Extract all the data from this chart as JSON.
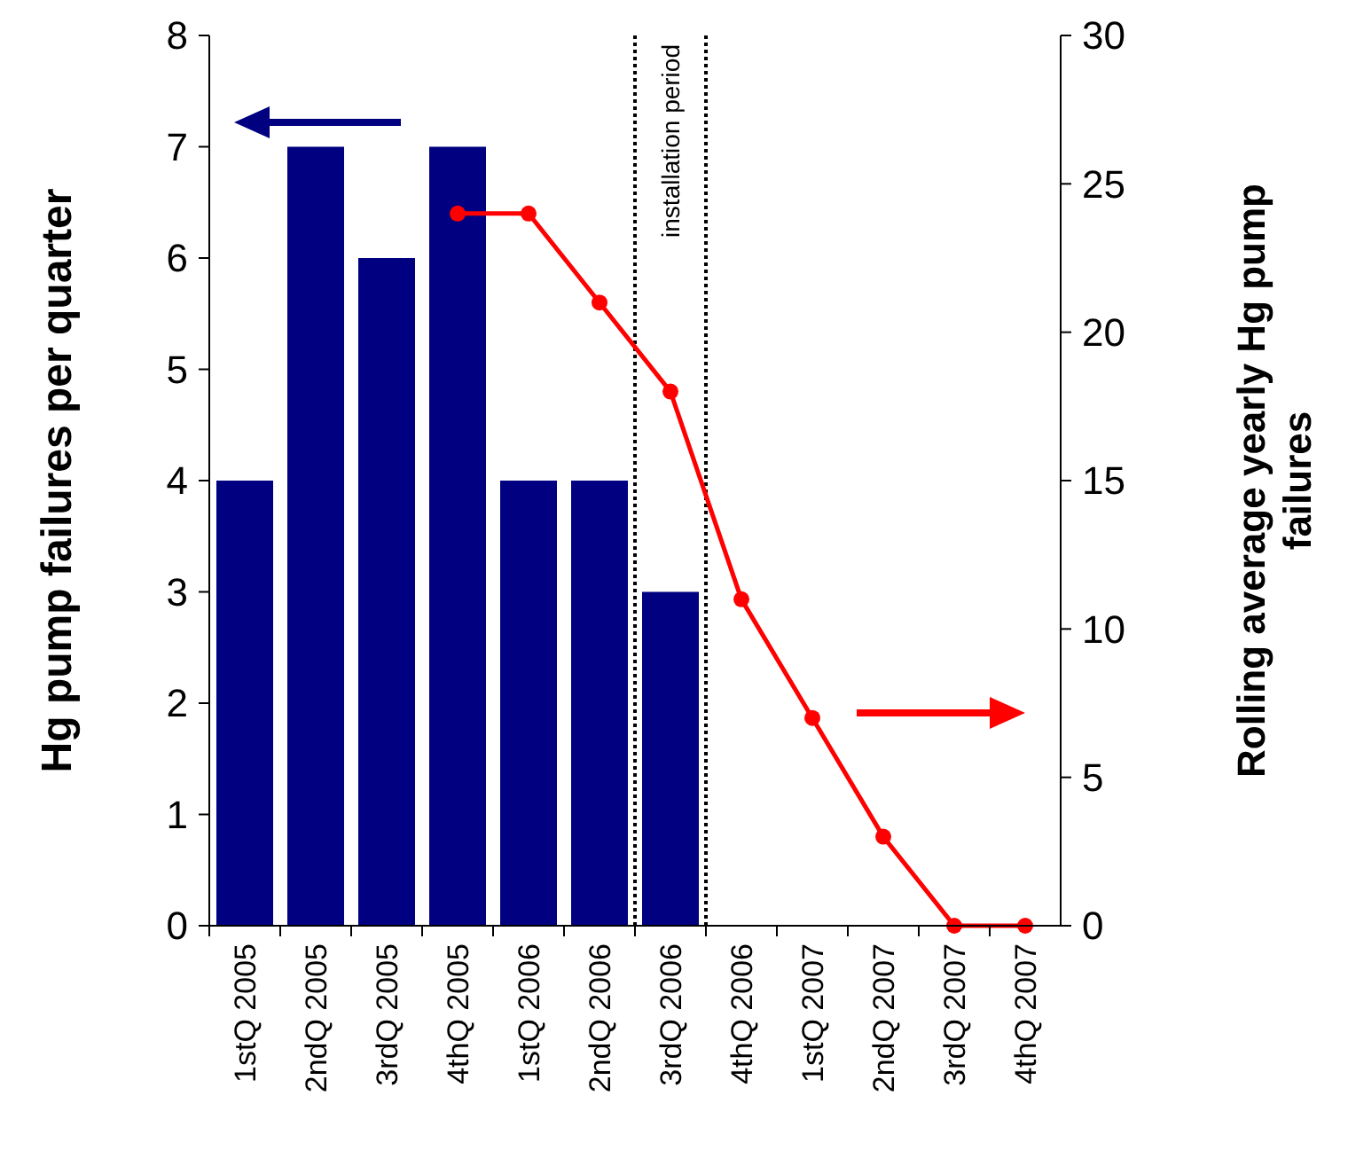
{
  "chart_data": {
    "type": "bar",
    "ylabel": "Hg pump failures per quarter",
    "y2label": "Rolling average yearly Hg pump failures",
    "categories": [
      "1stQ 2005",
      "2ndQ 2005",
      "3rdQ 2005",
      "4thQ 2005",
      "1stQ 2006",
      "2ndQ 2006",
      "3rdQ 2006",
      "4thQ 2006",
      "1stQ 2007",
      "2ndQ 2007",
      "3rdQ 2007",
      "4thQ 2007"
    ],
    "series": [
      {
        "color": "#000080",
        "values": [
          4,
          7,
          6,
          7,
          4,
          4,
          3,
          null,
          null,
          null,
          null,
          null
        ]
      },
      {
        "type": "line",
        "axis": "y2",
        "color": "#ff0000",
        "marker": "circle",
        "line_style": "solid",
        "values": [
          null,
          null,
          null,
          24,
          24,
          21,
          18,
          11,
          7,
          3,
          0,
          0
        ]
      }
    ],
    "ylim": [
      0,
      8
    ],
    "yticks": [
      0,
      1,
      2,
      3,
      4,
      5,
      6,
      7,
      8
    ],
    "y2lim": [
      0,
      30
    ],
    "y2ticks": [
      0,
      5,
      10,
      15,
      20,
      25,
      30
    ],
    "annotations": [
      "installation period"
    ],
    "grid": false
  }
}
